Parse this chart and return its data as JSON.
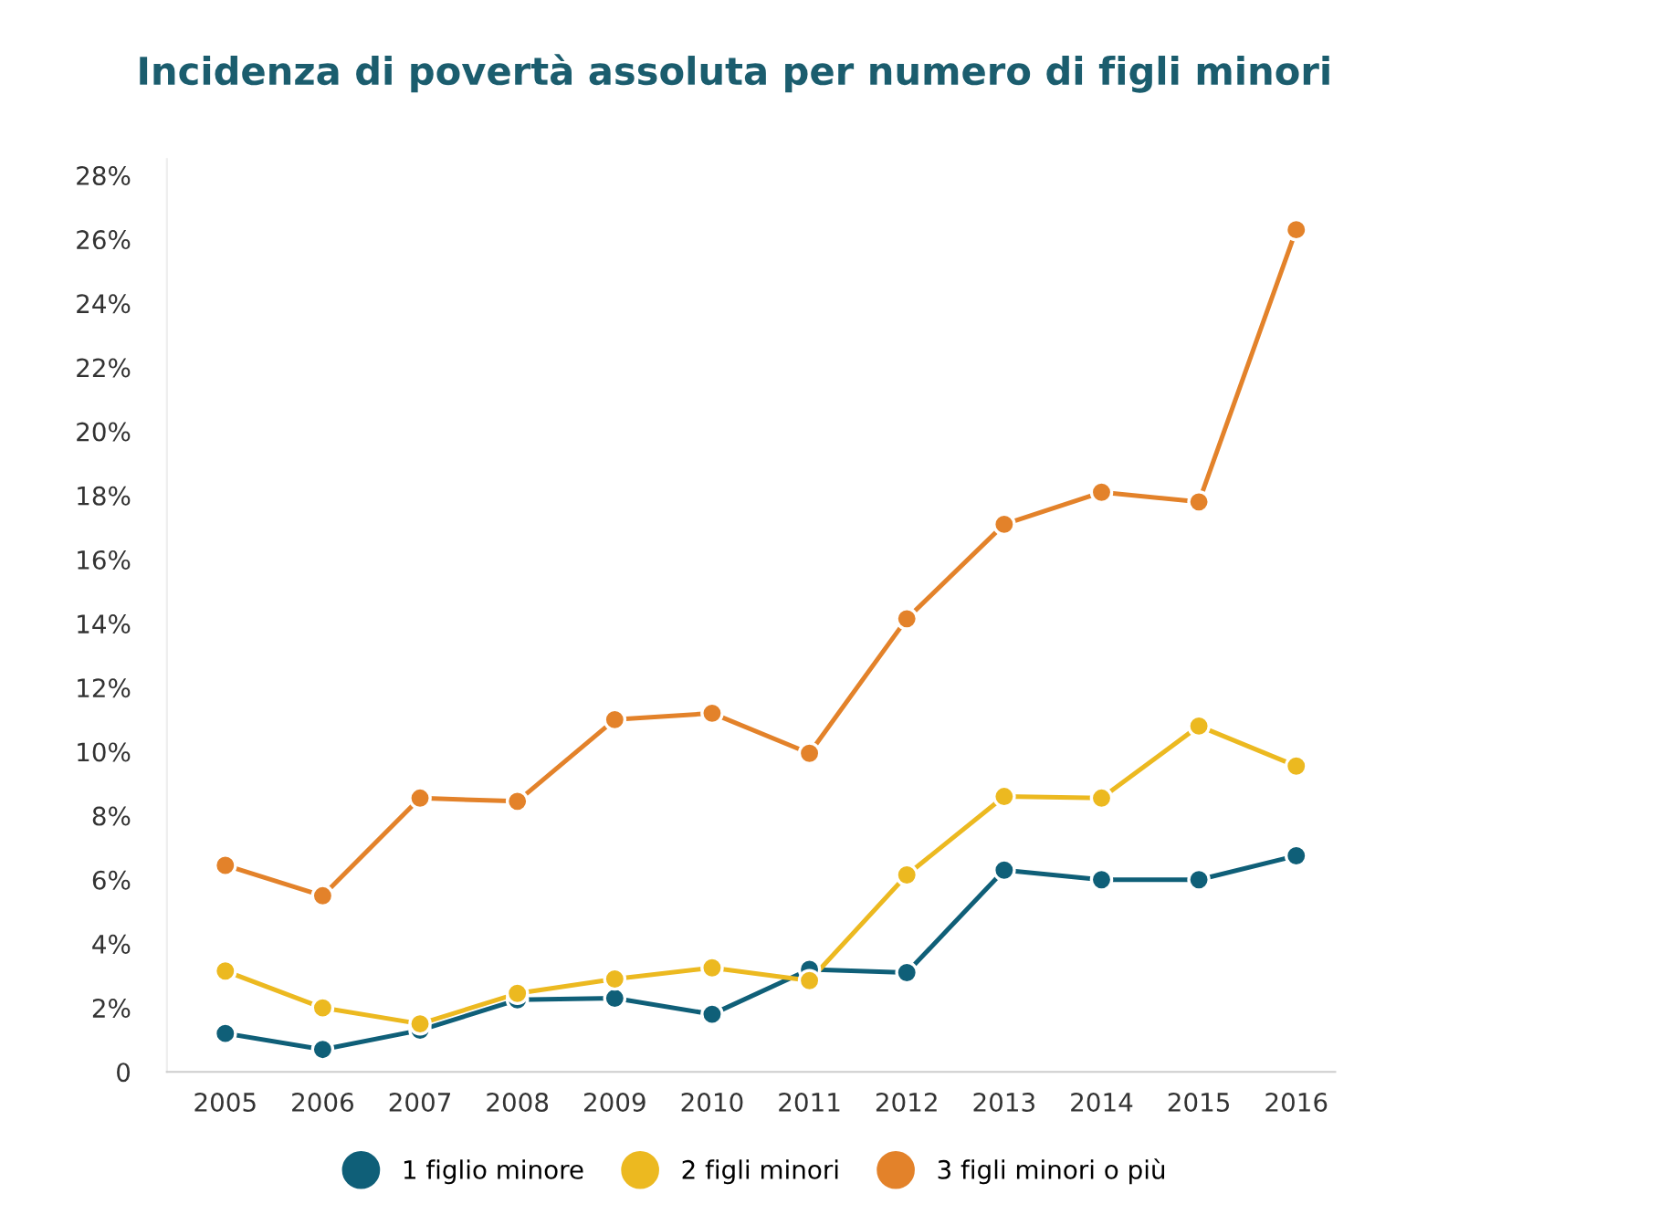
{
  "chart_data": {
    "type": "line",
    "title": "Incidenza di povertà assoluta per numero di figli minori",
    "categories": [
      "2005",
      "2006",
      "2007",
      "2008",
      "2009",
      "2010",
      "2011",
      "2012",
      "2013",
      "2014",
      "2015",
      "2016"
    ],
    "series": [
      {
        "name": "1 figlio minore",
        "color": "#0f5f78",
        "values": [
          1.2,
          0.7,
          1.3,
          2.25,
          2.3,
          1.8,
          3.2,
          3.1,
          6.3,
          6.0,
          6.0,
          6.75
        ]
      },
      {
        "name": "2 figli minori",
        "color": "#ecb920",
        "values": [
          3.15,
          2.0,
          1.5,
          2.45,
          2.9,
          3.25,
          2.85,
          6.15,
          8.6,
          8.55,
          10.8,
          9.55
        ]
      },
      {
        "name": "3 figli minori o più",
        "color": "#e3822a",
        "values": [
          6.45,
          5.5,
          8.55,
          8.45,
          11.0,
          11.2,
          9.95,
          14.15,
          17.1,
          18.1,
          17.8,
          26.3
        ]
      }
    ],
    "ylim": [
      0,
      28.5
    ],
    "yticks": [
      {
        "value": 0,
        "label": "0"
      },
      {
        "value": 2,
        "label": "2%"
      },
      {
        "value": 4,
        "label": "4%"
      },
      {
        "value": 6,
        "label": "6%"
      },
      {
        "value": 8,
        "label": "8%"
      },
      {
        "value": 10,
        "label": "10%"
      },
      {
        "value": 12,
        "label": "12%"
      },
      {
        "value": 14,
        "label": "14%"
      },
      {
        "value": 16,
        "label": "16%"
      },
      {
        "value": 18,
        "label": "18%"
      },
      {
        "value": 20,
        "label": "20%"
      },
      {
        "value": 22,
        "label": "22%"
      },
      {
        "value": 24,
        "label": "24%"
      },
      {
        "value": 26,
        "label": "26%"
      },
      {
        "value": 28,
        "label": "28%"
      }
    ],
    "grid": false,
    "legend": "bottom",
    "marker": "circle",
    "line_style": "solid"
  }
}
